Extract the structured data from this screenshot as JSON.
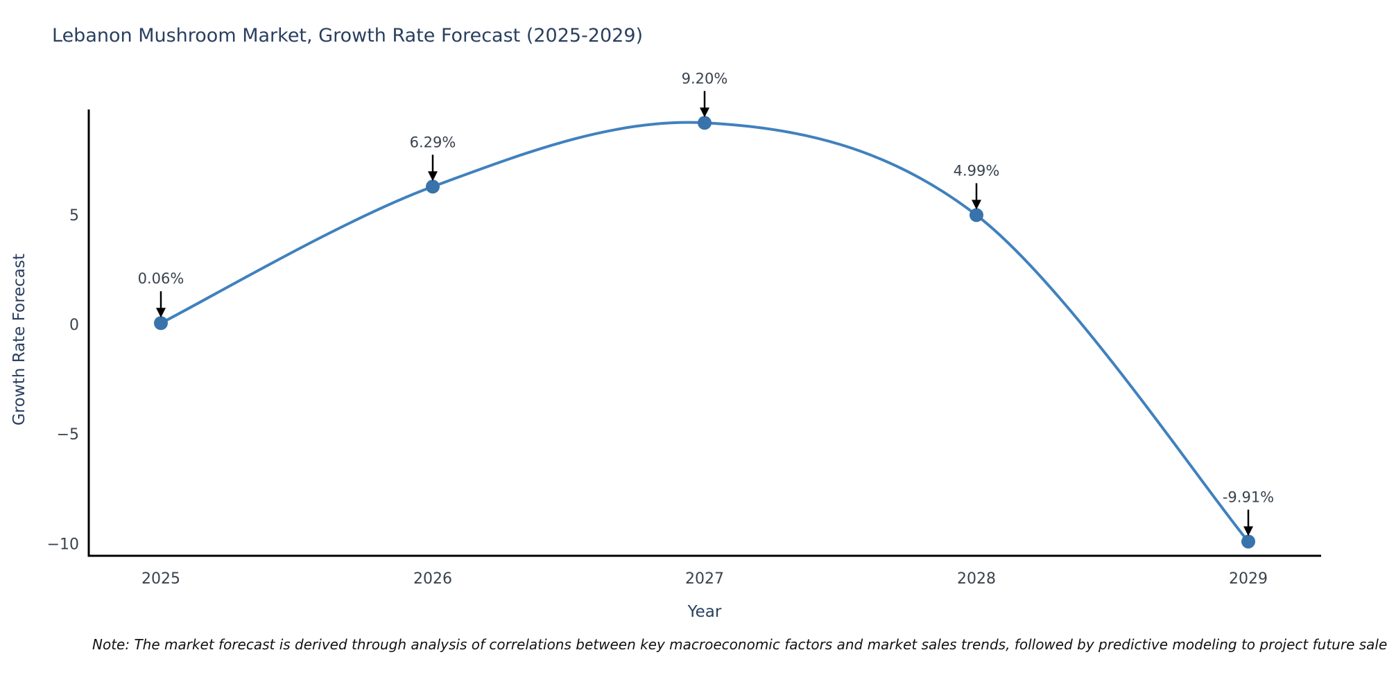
{
  "note": {
    "text": "Note: The market forecast is derived through analysis of correlations between key macroeconomic factors and market sales trends, followed by predictive modeling to project future sales."
  },
  "chart_data": {
    "type": "line",
    "title": "Lebanon Mushroom Market, Growth Rate Forecast (2025-2029)",
    "xlabel": "Year",
    "ylabel": "Growth Rate Forecast",
    "categories": [
      "2025",
      "2026",
      "2027",
      "2028",
      "2029"
    ],
    "series": [
      {
        "name": "Growth Rate Forecast",
        "values": [
          0.06,
          6.29,
          9.2,
          4.99,
          -9.91
        ]
      }
    ],
    "point_labels": [
      "0.06%",
      "6.29%",
      "9.20%",
      "4.99%",
      "-9.91%"
    ],
    "ytick_values": [
      5,
      0,
      -5,
      -10
    ],
    "ytick_labels": [
      "5",
      "0",
      "−5",
      "−10"
    ],
    "ylim": [
      -10.56,
      9.81
    ],
    "grid": false,
    "legend": false,
    "smooth": true,
    "annotations_have_arrows": true,
    "colors": {
      "line": "#4081bd",
      "marker": "#3973ab",
      "axis": "#000000",
      "tick_text": "#39424d",
      "title_text": "#2a3f5f",
      "annotation_text": "#39424d",
      "arrow": "#000000",
      "note_text": "#111111",
      "background": "#ffffff"
    }
  }
}
